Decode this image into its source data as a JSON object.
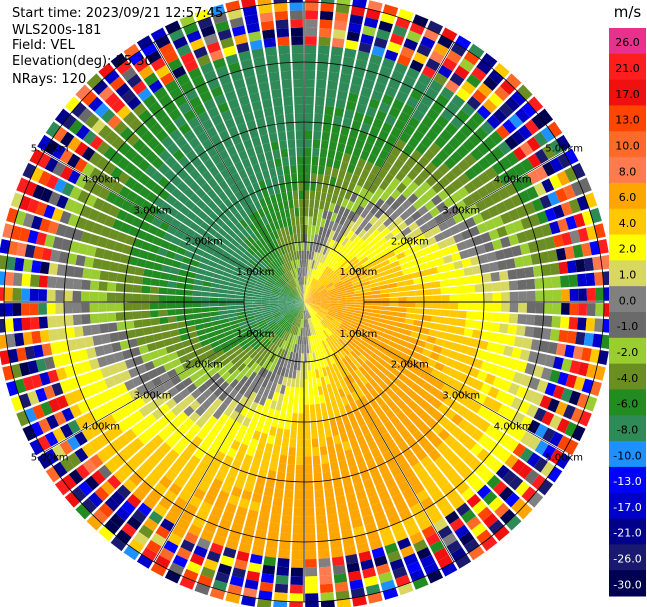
{
  "header": {
    "start_time": "Start time: 2023/09/21 12:57:45",
    "station": "WLS200s-181",
    "field": "Field: VEL",
    "elevation": "Elevation(deg): 35.30",
    "nrays": "NRays: 120"
  },
  "chart_data": {
    "type": "heatmap",
    "projection": "polar-ppi",
    "field": "VEL",
    "rays": 120,
    "range_rings_km": [
      1.0,
      2.0,
      3.0,
      4.0,
      5.0
    ],
    "range_ring_labels": [
      "1.00km",
      "2.00km",
      "3.00km",
      "4.00km",
      "5.00km"
    ],
    "max_range_km": 6.2,
    "colorbar": {
      "unit": "m/s",
      "ticks": [
        "26.0",
        "21.0",
        "17.0",
        "13.0",
        "10.0",
        "8.0",
        "6.0",
        "4.0",
        "2.0",
        "1.0",
        "0.0",
        "-1.0",
        "-2.0",
        "-4.0",
        "-6.0",
        "-8.0",
        "-10.0",
        "-13.0",
        "-17.0",
        "-21.0",
        "-26.0",
        "-30.0"
      ],
      "colors": [
        "#e8308c",
        "#ff1e1e",
        "#f01010",
        "#ff4500",
        "#ff6a2a",
        "#ff7b4f",
        "#ffa500",
        "#ffc800",
        "#ffff00",
        "#d8d860",
        "#808080",
        "#6a6a6a",
        "#9acd32",
        "#6b8e23",
        "#228b22",
        "#2e8b57",
        "#1e90ff",
        "#0000ff",
        "#0000cd",
        "#00008b",
        "#191970",
        "#000050"
      ]
    }
  }
}
